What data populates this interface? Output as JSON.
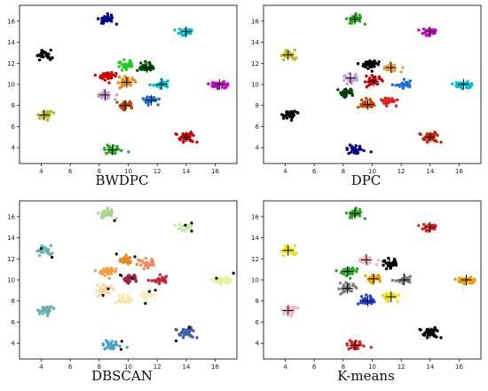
{
  "chart_data": [
    {
      "type": "scatter",
      "title": "BWDPC",
      "xlim": [
        2.5,
        17.5
      ],
      "ylim": [
        2.5,
        17.5
      ],
      "xticks": [
        4,
        6,
        8,
        10,
        12,
        14,
        16
      ],
      "yticks": [
        4,
        6,
        8,
        10,
        12,
        14,
        16
      ],
      "clusters": [
        {
          "cx": 4.2,
          "cy": 12.8,
          "color": "#000000",
          "center": false
        },
        {
          "cx": 8.5,
          "cy": 16.2,
          "color": "#00008b",
          "center": false
        },
        {
          "cx": 14.0,
          "cy": 15.0,
          "color": "#00bcd4",
          "center": true
        },
        {
          "cx": 16.3,
          "cy": 10.0,
          "color": "#cc00cc",
          "center": true
        },
        {
          "cx": 4.2,
          "cy": 7.1,
          "color": "#bcbd22",
          "center": true
        },
        {
          "cx": 8.9,
          "cy": 3.8,
          "color": "#22aa22",
          "center": true
        },
        {
          "cx": 14.0,
          "cy": 5.0,
          "color": "#cc0000",
          "center": true
        },
        {
          "cx": 8.5,
          "cy": 10.8,
          "color": "#cc0000",
          "center": false
        },
        {
          "cx": 8.4,
          "cy": 9.0,
          "color": "#c8a0d8",
          "center": true
        },
        {
          "cx": 9.8,
          "cy": 11.9,
          "color": "#22cc22",
          "center": false
        },
        {
          "cx": 9.9,
          "cy": 10.2,
          "color": "#e8891c",
          "center": true
        },
        {
          "cx": 9.8,
          "cy": 8.0,
          "color": "#cc4400",
          "center": true
        },
        {
          "cx": 11.3,
          "cy": 11.6,
          "color": "#004d00",
          "center": true
        },
        {
          "cx": 11.6,
          "cy": 8.5,
          "color": "#1e6fd9",
          "center": true
        },
        {
          "cx": 12.3,
          "cy": 10.0,
          "color": "#00bcd4",
          "center": true
        }
      ]
    },
    {
      "type": "scatter",
      "title": "DPC",
      "xlim": [
        2.5,
        17.5
      ],
      "ylim": [
        2.5,
        17.5
      ],
      "xticks": [
        4,
        6,
        8,
        10,
        12,
        14,
        16
      ],
      "yticks": [
        4,
        6,
        8,
        10,
        12,
        14,
        16
      ],
      "clusters": [
        {
          "cx": 4.2,
          "cy": 12.8,
          "color": "#bcbd22",
          "center": true
        },
        {
          "cx": 8.8,
          "cy": 16.2,
          "color": "#22aa22",
          "center": true
        },
        {
          "cx": 14.0,
          "cy": 15.0,
          "color": "#cc00cc",
          "center": true
        },
        {
          "cx": 16.3,
          "cy": 10.0,
          "color": "#00bcd4",
          "center": true
        },
        {
          "cx": 4.2,
          "cy": 7.1,
          "color": "#000000",
          "center": false
        },
        {
          "cx": 8.8,
          "cy": 3.8,
          "color": "#00008b",
          "center": false
        },
        {
          "cx": 14.0,
          "cy": 5.0,
          "color": "#cc2200",
          "center": true
        },
        {
          "cx": 9.8,
          "cy": 11.9,
          "color": "#000000",
          "center": true
        },
        {
          "cx": 11.3,
          "cy": 11.6,
          "color": "#e8a040",
          "center": true
        },
        {
          "cx": 8.5,
          "cy": 10.6,
          "color": "#c8a0d8",
          "center": true
        },
        {
          "cx": 10.1,
          "cy": 10.3,
          "color": "#cc0000",
          "center": true
        },
        {
          "cx": 8.2,
          "cy": 9.2,
          "color": "#004d00",
          "center": true
        },
        {
          "cx": 9.7,
          "cy": 8.1,
          "color": "#cc4400",
          "center": true
        },
        {
          "cx": 11.2,
          "cy": 8.4,
          "color": "#dd2222",
          "center": false
        },
        {
          "cx": 12.2,
          "cy": 10.0,
          "color": "#1e6fd9",
          "center": false
        }
      ]
    },
    {
      "type": "scatter",
      "title": "DBSCAN",
      "xlim": [
        2.5,
        17.5
      ],
      "ylim": [
        2.5,
        17.5
      ],
      "xticks": [
        4,
        6,
        8,
        10,
        12,
        14,
        16
      ],
      "yticks": [
        4,
        6,
        8,
        10,
        12,
        14,
        16
      ],
      "clusters": [
        {
          "cx": 4.2,
          "cy": 12.8,
          "color": "#66b3aa",
          "center": false
        },
        {
          "cx": 8.5,
          "cy": 16.3,
          "color": "#a8d890",
          "center": false
        },
        {
          "cx": 14.0,
          "cy": 15.0,
          "color": "#cfe8b0",
          "center": false
        },
        {
          "cx": 16.5,
          "cy": 10.0,
          "color": "#e8f0a0",
          "center": false
        },
        {
          "cx": 4.2,
          "cy": 7.1,
          "color": "#66b3aa",
          "center": false
        },
        {
          "cx": 8.8,
          "cy": 3.8,
          "color": "#4aa0c8",
          "center": false
        },
        {
          "cx": 14.0,
          "cy": 5.0,
          "color": "#4060b0",
          "center": false
        },
        {
          "cx": 8.5,
          "cy": 10.8,
          "color": "#f0a040",
          "center": false
        },
        {
          "cx": 9.9,
          "cy": 11.9,
          "color": "#e8891c",
          "center": false
        },
        {
          "cx": 11.3,
          "cy": 11.6,
          "color": "#f08a60",
          "center": false
        },
        {
          "cx": 8.4,
          "cy": 9.0,
          "color": "#f8d8a0",
          "center": false
        },
        {
          "cx": 10.1,
          "cy": 10.1,
          "color": "#a0204a",
          "center": false
        },
        {
          "cx": 9.8,
          "cy": 8.1,
          "color": "#f8e8b0",
          "center": false
        },
        {
          "cx": 11.4,
          "cy": 8.5,
          "color": "#f8f0c0",
          "center": false
        },
        {
          "cx": 12.2,
          "cy": 10.0,
          "color": "#cc2244",
          "center": false
        }
      ]
    },
    {
      "type": "scatter",
      "title": "K-means",
      "xlim": [
        2.5,
        17.5
      ],
      "ylim": [
        2.5,
        17.5
      ],
      "xticks": [
        4,
        6,
        8,
        10,
        12,
        14,
        16
      ],
      "yticks": [
        4,
        6,
        8,
        10,
        12,
        14,
        16
      ],
      "clusters": [
        {
          "cx": 4.2,
          "cy": 12.8,
          "color": "#f0e000",
          "center": true
        },
        {
          "cx": 8.8,
          "cy": 16.3,
          "color": "#22aa22",
          "center": true
        },
        {
          "cx": 14.0,
          "cy": 15.0,
          "color": "#dd2222",
          "center": true
        },
        {
          "cx": 16.5,
          "cy": 10.0,
          "color": "#f0a000",
          "center": true
        },
        {
          "cx": 4.2,
          "cy": 7.1,
          "color": "#f0b8c0",
          "center": true
        },
        {
          "cx": 8.8,
          "cy": 3.8,
          "color": "#dd2222",
          "center": true
        },
        {
          "cx": 14.0,
          "cy": 5.0,
          "color": "#000000",
          "center": true
        },
        {
          "cx": 8.3,
          "cy": 10.8,
          "color": "#22aa22",
          "center": true
        },
        {
          "cx": 9.6,
          "cy": 11.9,
          "color": "#f0b8c0",
          "center": true
        },
        {
          "cx": 11.2,
          "cy": 11.6,
          "color": "#000000",
          "center": true
        },
        {
          "cx": 8.3,
          "cy": 9.2,
          "color": "#808080",
          "center": true
        },
        {
          "cx": 10.1,
          "cy": 10.1,
          "color": "#f0a000",
          "center": true
        },
        {
          "cx": 9.7,
          "cy": 8.0,
          "color": "#1e3fd9",
          "center": true
        },
        {
          "cx": 11.3,
          "cy": 8.4,
          "color": "#f0e000",
          "center": true
        },
        {
          "cx": 12.2,
          "cy": 10.0,
          "color": "#808080",
          "center": true
        }
      ]
    }
  ]
}
